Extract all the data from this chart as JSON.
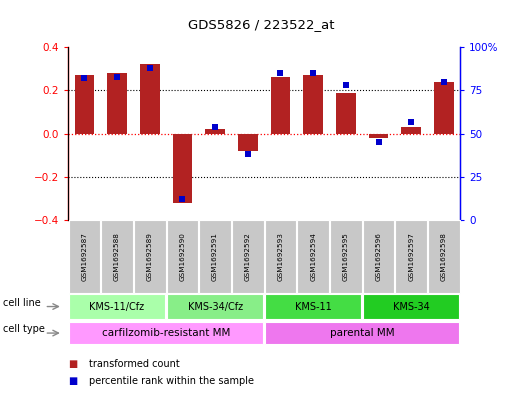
{
  "title": "GDS5826 / 223522_at",
  "samples": [
    "GSM1692587",
    "GSM1692588",
    "GSM1692589",
    "GSM1692590",
    "GSM1692591",
    "GSM1692592",
    "GSM1692593",
    "GSM1692594",
    "GSM1692595",
    "GSM1692596",
    "GSM1692597",
    "GSM1692598"
  ],
  "transformed_counts": [
    0.27,
    0.28,
    0.32,
    -0.32,
    0.02,
    -0.08,
    0.26,
    0.27,
    0.19,
    -0.02,
    0.03,
    0.24
  ],
  "percentile_ranks": [
    82,
    83,
    88,
    12,
    54,
    38,
    85,
    85,
    78,
    45,
    57,
    80
  ],
  "bar_color": "#b22222",
  "dot_color": "#0000cc",
  "ylim_left": [
    -0.4,
    0.4
  ],
  "ylim_right": [
    0,
    100
  ],
  "yticks_left": [
    -0.4,
    -0.2,
    0.0,
    0.2,
    0.4
  ],
  "yticks_right": [
    0,
    25,
    50,
    75,
    100
  ],
  "ytick_labels_right": [
    "0",
    "25",
    "50",
    "75",
    "100%"
  ],
  "cell_line_groups": [
    {
      "label": "KMS-11/Cfz",
      "start": 0,
      "end": 3,
      "color": "#aaffaa"
    },
    {
      "label": "KMS-34/Cfz",
      "start": 3,
      "end": 6,
      "color": "#88ee88"
    },
    {
      "label": "KMS-11",
      "start": 6,
      "end": 9,
      "color": "#44dd44"
    },
    {
      "label": "KMS-34",
      "start": 9,
      "end": 12,
      "color": "#22cc22"
    }
  ],
  "cell_type_groups": [
    {
      "label": "carfilzomib-resistant MM",
      "start": 0,
      "end": 6,
      "color": "#ff99ff"
    },
    {
      "label": "parental MM",
      "start": 6,
      "end": 12,
      "color": "#ee77ee"
    }
  ],
  "cell_line_label": "cell line",
  "cell_type_label": "cell type",
  "legend_items": [
    {
      "color": "#b22222",
      "label": "transformed count"
    },
    {
      "color": "#0000cc",
      "label": "percentile rank within the sample"
    }
  ],
  "background_color": "#ffffff",
  "axis_bg_color": "#c8c8c8"
}
